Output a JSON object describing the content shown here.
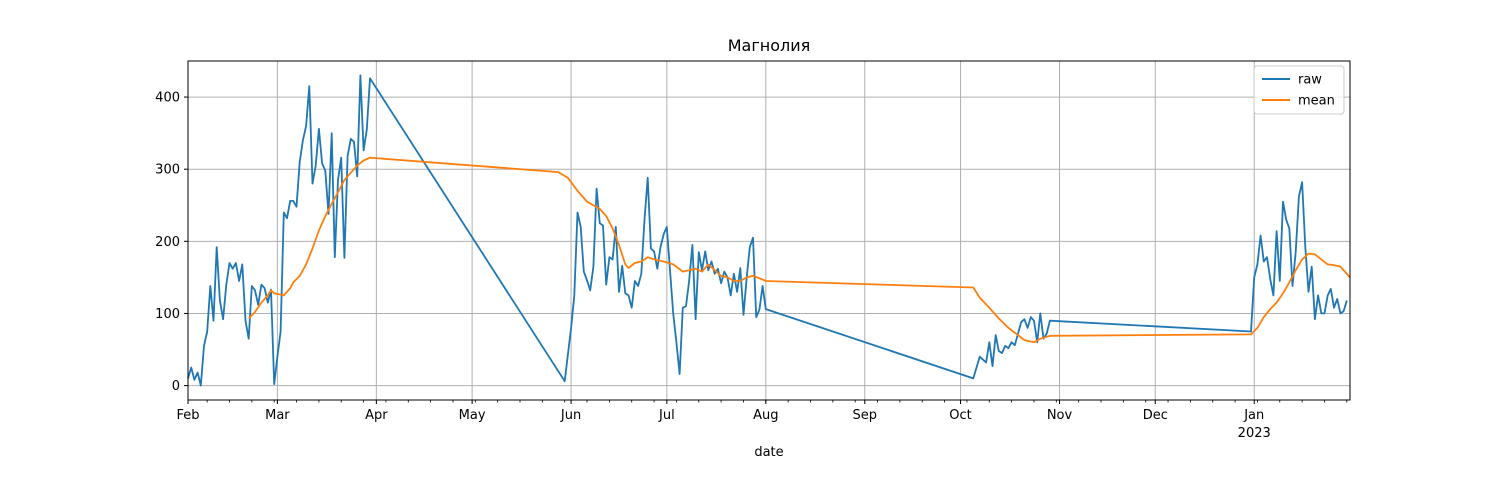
{
  "chart_data": {
    "type": "line",
    "title": "Магнолия",
    "xlabel": "date",
    "ylabel": "",
    "xlim": [
      "2022-02-01",
      "2023-01-31"
    ],
    "ylim": [
      -20,
      450
    ],
    "yticks": [
      0,
      100,
      200,
      300,
      400
    ],
    "xticks": [
      {
        "date": "2022-02-01",
        "label": "Feb",
        "sublabel": ""
      },
      {
        "date": "2022-03-01",
        "label": "Mar",
        "sublabel": ""
      },
      {
        "date": "2022-04-01",
        "label": "Apr",
        "sublabel": ""
      },
      {
        "date": "2022-05-01",
        "label": "May",
        "sublabel": ""
      },
      {
        "date": "2022-06-01",
        "label": "Jun",
        "sublabel": ""
      },
      {
        "date": "2022-07-01",
        "label": "Jul",
        "sublabel": ""
      },
      {
        "date": "2022-08-01",
        "label": "Aug",
        "sublabel": ""
      },
      {
        "date": "2022-09-01",
        "label": "Sep",
        "sublabel": ""
      },
      {
        "date": "2022-10-01",
        "label": "Oct",
        "sublabel": ""
      },
      {
        "date": "2022-11-01",
        "label": "Nov",
        "sublabel": ""
      },
      {
        "date": "2022-12-01",
        "label": "Dec",
        "sublabel": ""
      },
      {
        "date": "2023-01-01",
        "label": "Jan",
        "sublabel": "2023"
      }
    ],
    "grid": true,
    "legend_position": "top-right",
    "series": [
      {
        "name": "raw",
        "color": "#1f77b4",
        "points": [
          [
            "2022-02-01",
            10
          ],
          [
            "2022-02-02",
            25
          ],
          [
            "2022-02-03",
            8
          ],
          [
            "2022-02-04",
            18
          ],
          [
            "2022-02-05",
            0
          ],
          [
            "2022-02-06",
            55
          ],
          [
            "2022-02-07",
            75
          ],
          [
            "2022-02-08",
            138
          ],
          [
            "2022-02-09",
            90
          ],
          [
            "2022-02-10",
            192
          ],
          [
            "2022-02-11",
            118
          ],
          [
            "2022-02-12",
            92
          ],
          [
            "2022-02-13",
            140
          ],
          [
            "2022-02-14",
            170
          ],
          [
            "2022-02-15",
            162
          ],
          [
            "2022-02-16",
            170
          ],
          [
            "2022-02-17",
            145
          ],
          [
            "2022-02-18",
            168
          ],
          [
            "2022-02-19",
            90
          ],
          [
            "2022-02-20",
            65
          ],
          [
            "2022-02-21",
            138
          ],
          [
            "2022-02-22",
            132
          ],
          [
            "2022-02-23",
            112
          ],
          [
            "2022-02-24",
            140
          ],
          [
            "2022-02-25",
            135
          ],
          [
            "2022-02-26",
            115
          ],
          [
            "2022-02-27",
            133
          ],
          [
            "2022-02-28",
            2
          ],
          [
            "2022-03-01",
            40
          ],
          [
            "2022-03-02",
            75
          ],
          [
            "2022-03-03",
            240
          ],
          [
            "2022-03-04",
            232
          ],
          [
            "2022-03-05",
            256
          ],
          [
            "2022-03-06",
            256
          ],
          [
            "2022-03-07",
            248
          ],
          [
            "2022-03-08",
            310
          ],
          [
            "2022-03-09",
            340
          ],
          [
            "2022-03-10",
            360
          ],
          [
            "2022-03-11",
            415
          ],
          [
            "2022-03-12",
            280
          ],
          [
            "2022-03-13",
            305
          ],
          [
            "2022-03-14",
            356
          ],
          [
            "2022-03-15",
            308
          ],
          [
            "2022-03-16",
            298
          ],
          [
            "2022-03-17",
            238
          ],
          [
            "2022-03-18",
            350
          ],
          [
            "2022-03-19",
            178
          ],
          [
            "2022-03-20",
            285
          ],
          [
            "2022-03-21",
            316
          ],
          [
            "2022-03-22",
            177
          ],
          [
            "2022-03-23",
            318
          ],
          [
            "2022-03-24",
            342
          ],
          [
            "2022-03-25",
            338
          ],
          [
            "2022-03-26",
            290
          ],
          [
            "2022-03-27",
            430
          ],
          [
            "2022-03-28",
            326
          ],
          [
            "2022-03-29",
            355
          ],
          [
            "2022-03-30",
            426
          ],
          [
            "2022-05-30",
            6
          ],
          [
            "2022-06-01",
            80
          ],
          [
            "2022-06-02",
            125
          ],
          [
            "2022-06-03",
            240
          ],
          [
            "2022-06-04",
            220
          ],
          [
            "2022-06-05",
            158
          ],
          [
            "2022-06-06",
            146
          ],
          [
            "2022-06-07",
            132
          ],
          [
            "2022-06-08",
            165
          ],
          [
            "2022-06-09",
            273
          ],
          [
            "2022-06-10",
            225
          ],
          [
            "2022-06-11",
            222
          ],
          [
            "2022-06-12",
            140
          ],
          [
            "2022-06-13",
            178
          ],
          [
            "2022-06-14",
            175
          ],
          [
            "2022-06-15",
            220
          ],
          [
            "2022-06-16",
            130
          ],
          [
            "2022-06-17",
            166
          ],
          [
            "2022-06-18",
            128
          ],
          [
            "2022-06-19",
            125
          ],
          [
            "2022-06-20",
            108
          ],
          [
            "2022-06-21",
            145
          ],
          [
            "2022-06-22",
            138
          ],
          [
            "2022-06-23",
            155
          ],
          [
            "2022-06-24",
            230
          ],
          [
            "2022-06-25",
            288
          ],
          [
            "2022-06-26",
            190
          ],
          [
            "2022-06-27",
            186
          ],
          [
            "2022-06-28",
            162
          ],
          [
            "2022-06-29",
            192
          ],
          [
            "2022-06-30",
            210
          ],
          [
            "2022-07-01",
            220
          ],
          [
            "2022-07-02",
            160
          ],
          [
            "2022-07-03",
            100
          ],
          [
            "2022-07-04",
            60
          ],
          [
            "2022-07-05",
            16
          ],
          [
            "2022-07-06",
            108
          ],
          [
            "2022-07-07",
            110
          ],
          [
            "2022-07-08",
            146
          ],
          [
            "2022-07-09",
            195
          ],
          [
            "2022-07-10",
            92
          ],
          [
            "2022-07-11",
            185
          ],
          [
            "2022-07-12",
            160
          ],
          [
            "2022-07-13",
            186
          ],
          [
            "2022-07-14",
            160
          ],
          [
            "2022-07-15",
            172
          ],
          [
            "2022-07-16",
            155
          ],
          [
            "2022-07-17",
            162
          ],
          [
            "2022-07-18",
            142
          ],
          [
            "2022-07-19",
            158
          ],
          [
            "2022-07-20",
            150
          ],
          [
            "2022-07-21",
            125
          ],
          [
            "2022-07-22",
            155
          ],
          [
            "2022-07-23",
            130
          ],
          [
            "2022-07-24",
            163
          ],
          [
            "2022-07-25",
            98
          ],
          [
            "2022-07-26",
            150
          ],
          [
            "2022-07-27",
            192
          ],
          [
            "2022-07-28",
            205
          ],
          [
            "2022-07-29",
            95
          ],
          [
            "2022-07-30",
            105
          ],
          [
            "2022-07-31",
            138
          ],
          [
            "2022-08-01",
            106
          ],
          [
            "2022-10-05",
            10
          ],
          [
            "2022-10-07",
            40
          ],
          [
            "2022-10-08",
            36
          ],
          [
            "2022-10-09",
            32
          ],
          [
            "2022-10-10",
            60
          ],
          [
            "2022-10-11",
            27
          ],
          [
            "2022-10-12",
            70
          ],
          [
            "2022-10-13",
            48
          ],
          [
            "2022-10-14",
            45
          ],
          [
            "2022-10-15",
            55
          ],
          [
            "2022-10-16",
            52
          ],
          [
            "2022-10-17",
            60
          ],
          [
            "2022-10-18",
            56
          ],
          [
            "2022-10-19",
            72
          ],
          [
            "2022-10-20",
            88
          ],
          [
            "2022-10-21",
            92
          ],
          [
            "2022-10-22",
            80
          ],
          [
            "2022-10-23",
            95
          ],
          [
            "2022-10-24",
            90
          ],
          [
            "2022-10-25",
            60
          ],
          [
            "2022-10-26",
            100
          ],
          [
            "2022-10-27",
            65
          ],
          [
            "2022-10-28",
            72
          ],
          [
            "2022-10-29",
            90
          ],
          [
            "2022-12-31",
            75
          ],
          [
            "2023-01-01",
            150
          ],
          [
            "2023-01-02",
            168
          ],
          [
            "2023-01-03",
            208
          ],
          [
            "2023-01-04",
            172
          ],
          [
            "2023-01-05",
            178
          ],
          [
            "2023-01-06",
            148
          ],
          [
            "2023-01-07",
            125
          ],
          [
            "2023-01-08",
            214
          ],
          [
            "2023-01-09",
            145
          ],
          [
            "2023-01-10",
            255
          ],
          [
            "2023-01-11",
            230
          ],
          [
            "2023-01-12",
            218
          ],
          [
            "2023-01-13",
            138
          ],
          [
            "2023-01-14",
            185
          ],
          [
            "2023-01-15",
            262
          ],
          [
            "2023-01-16",
            282
          ],
          [
            "2023-01-17",
            192
          ],
          [
            "2023-01-18",
            130
          ],
          [
            "2023-01-19",
            165
          ],
          [
            "2023-01-20",
            92
          ],
          [
            "2023-01-21",
            125
          ],
          [
            "2023-01-22",
            100
          ],
          [
            "2023-01-23",
            100
          ],
          [
            "2023-01-24",
            125
          ],
          [
            "2023-01-25",
            134
          ],
          [
            "2023-01-26",
            108
          ],
          [
            "2023-01-27",
            120
          ],
          [
            "2023-01-28",
            100
          ],
          [
            "2023-01-29",
            103
          ],
          [
            "2023-01-30",
            118
          ]
        ]
      },
      {
        "name": "mean",
        "color": "#ff7f0e",
        "points": [
          [
            "2022-02-20",
            93
          ],
          [
            "2022-02-22",
            102
          ],
          [
            "2022-02-24",
            115
          ],
          [
            "2022-02-26",
            125
          ],
          [
            "2022-02-27",
            132
          ],
          [
            "2022-02-28",
            128
          ],
          [
            "2022-03-03",
            125
          ],
          [
            "2022-03-05",
            135
          ],
          [
            "2022-03-06",
            143
          ],
          [
            "2022-03-08",
            152
          ],
          [
            "2022-03-10",
            168
          ],
          [
            "2022-03-12",
            190
          ],
          [
            "2022-03-14",
            215
          ],
          [
            "2022-03-16",
            235
          ],
          [
            "2022-03-18",
            252
          ],
          [
            "2022-03-20",
            268
          ],
          [
            "2022-03-22",
            285
          ],
          [
            "2022-03-24",
            295
          ],
          [
            "2022-03-26",
            305
          ],
          [
            "2022-03-28",
            312
          ],
          [
            "2022-03-30",
            316
          ],
          [
            "2022-05-28",
            296
          ],
          [
            "2022-05-31",
            288
          ],
          [
            "2022-06-03",
            270
          ],
          [
            "2022-06-06",
            255
          ],
          [
            "2022-06-08",
            250
          ],
          [
            "2022-06-10",
            245
          ],
          [
            "2022-06-12",
            235
          ],
          [
            "2022-06-14",
            218
          ],
          [
            "2022-06-16",
            195
          ],
          [
            "2022-06-18",
            168
          ],
          [
            "2022-06-19",
            163
          ],
          [
            "2022-06-21",
            170
          ],
          [
            "2022-06-23",
            172
          ],
          [
            "2022-06-25",
            178
          ],
          [
            "2022-06-27",
            175
          ],
          [
            "2022-06-30",
            172
          ],
          [
            "2022-07-03",
            168
          ],
          [
            "2022-07-06",
            158
          ],
          [
            "2022-07-08",
            160
          ],
          [
            "2022-07-10",
            162
          ],
          [
            "2022-07-12",
            158
          ],
          [
            "2022-07-14",
            168
          ],
          [
            "2022-07-16",
            160
          ],
          [
            "2022-07-18",
            152
          ],
          [
            "2022-07-20",
            150
          ],
          [
            "2022-07-22",
            145
          ],
          [
            "2022-07-24",
            145
          ],
          [
            "2022-07-26",
            150
          ],
          [
            "2022-07-28",
            152
          ],
          [
            "2022-07-31",
            147
          ],
          [
            "2022-08-01",
            145
          ],
          [
            "2022-10-05",
            136
          ],
          [
            "2022-10-07",
            122
          ],
          [
            "2022-10-10",
            108
          ],
          [
            "2022-10-13",
            93
          ],
          [
            "2022-10-16",
            80
          ],
          [
            "2022-10-19",
            70
          ],
          [
            "2022-10-21",
            63
          ],
          [
            "2022-10-24",
            60
          ],
          [
            "2022-10-26",
            65
          ],
          [
            "2022-10-29",
            69
          ],
          [
            "2022-12-31",
            71
          ],
          [
            "2023-01-02",
            80
          ],
          [
            "2023-01-04",
            95
          ],
          [
            "2023-01-06",
            106
          ],
          [
            "2023-01-08",
            115
          ],
          [
            "2023-01-10",
            128
          ],
          [
            "2023-01-12",
            143
          ],
          [
            "2023-01-14",
            160
          ],
          [
            "2023-01-16",
            175
          ],
          [
            "2023-01-18",
            183
          ],
          [
            "2023-01-20",
            182
          ],
          [
            "2023-01-22",
            175
          ],
          [
            "2023-01-24",
            168
          ],
          [
            "2023-01-26",
            167
          ],
          [
            "2023-01-28",
            165
          ],
          [
            "2023-01-31",
            150
          ]
        ]
      }
    ]
  }
}
